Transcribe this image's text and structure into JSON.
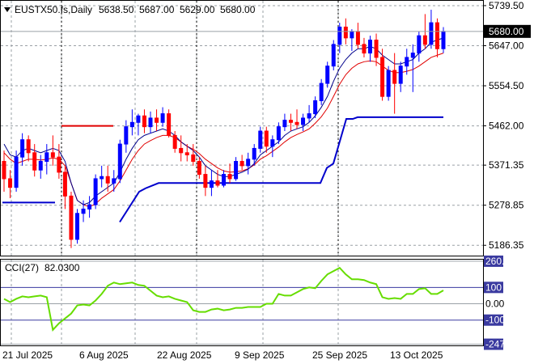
{
  "header": {
    "symbol": "EUSTX50.fs,Daily",
    "open": "5638.50",
    "high": "5687.00",
    "low": "5629.00",
    "close": "5680.00"
  },
  "indicator": {
    "label": "CCI(27)",
    "value": "82.0300"
  },
  "chart_data": {
    "type": "candlestick",
    "price_ticks": [
      "5739.50",
      "5647.00",
      "5554.50",
      "5462.00",
      "5371.35",
      "5278.85",
      "5186.35"
    ],
    "current_price": "5680.00",
    "x_ticks": [
      "21 Jul 2025",
      "6 Aug 2025",
      "22 Aug 2025",
      "9 Sep 2025",
      "25 Sep 2025",
      "13 Oct 2025"
    ],
    "cci_ticks": [
      "260.4851",
      "100",
      "0.00",
      "-100",
      "-247.8169"
    ],
    "ohlc": [
      [
        5380,
        5405,
        5310,
        5340
      ],
      [
        5340,
        5360,
        5295,
        5320
      ],
      [
        5320,
        5405,
        5310,
        5390
      ],
      [
        5390,
        5445,
        5370,
        5430
      ],
      [
        5430,
        5440,
        5380,
        5400
      ],
      [
        5400,
        5420,
        5345,
        5360
      ],
      [
        5360,
        5395,
        5340,
        5380
      ],
      [
        5380,
        5420,
        5350,
        5400
      ],
      [
        5400,
        5440,
        5370,
        5390
      ],
      [
        5390,
        5420,
        5340,
        5355
      ],
      [
        5355,
        5370,
        5270,
        5300
      ],
      [
        5300,
        5310,
        5180,
        5200
      ],
      [
        5200,
        5270,
        5190,
        5260
      ],
      [
        5260,
        5290,
        5240,
        5270
      ],
      [
        5270,
        5300,
        5250,
        5280
      ],
      [
        5280,
        5350,
        5270,
        5340
      ],
      [
        5340,
        5370,
        5320,
        5345
      ],
      [
        5345,
        5370,
        5310,
        5330
      ],
      [
        5330,
        5360,
        5310,
        5340
      ],
      [
        5340,
        5430,
        5330,
        5420
      ],
      [
        5420,
        5475,
        5400,
        5460
      ],
      [
        5460,
        5500,
        5440,
        5470
      ],
      [
        5470,
        5490,
        5440,
        5485
      ],
      [
        5485,
        5500,
        5445,
        5460
      ],
      [
        5460,
        5495,
        5445,
        5480
      ],
      [
        5480,
        5500,
        5450,
        5470
      ],
      [
        5470,
        5505,
        5460,
        5490
      ],
      [
        5490,
        5500,
        5435,
        5440
      ],
      [
        5440,
        5450,
        5400,
        5410
      ],
      [
        5410,
        5440,
        5380,
        5400
      ],
      [
        5400,
        5420,
        5380,
        5395
      ],
      [
        5395,
        5420,
        5370,
        5380
      ],
      [
        5380,
        5390,
        5340,
        5350
      ],
      [
        5350,
        5370,
        5300,
        5320
      ],
      [
        5320,
        5360,
        5300,
        5335
      ],
      [
        5335,
        5360,
        5320,
        5325
      ],
      [
        5325,
        5360,
        5320,
        5350
      ],
      [
        5350,
        5375,
        5330,
        5340
      ],
      [
        5340,
        5390,
        5335,
        5380
      ],
      [
        5380,
        5395,
        5360,
        5370
      ],
      [
        5370,
        5400,
        5350,
        5385
      ],
      [
        5385,
        5420,
        5370,
        5410
      ],
      [
        5410,
        5460,
        5400,
        5450
      ],
      [
        5450,
        5460,
        5400,
        5415
      ],
      [
        5415,
        5440,
        5390,
        5430
      ],
      [
        5430,
        5470,
        5420,
        5460
      ],
      [
        5460,
        5490,
        5450,
        5475
      ],
      [
        5475,
        5490,
        5450,
        5470
      ],
      [
        5470,
        5500,
        5455,
        5465
      ],
      [
        5465,
        5490,
        5450,
        5480
      ],
      [
        5480,
        5510,
        5470,
        5490
      ],
      [
        5490,
        5530,
        5480,
        5520
      ],
      [
        5520,
        5570,
        5510,
        5560
      ],
      [
        5560,
        5610,
        5550,
        5600
      ],
      [
        5600,
        5660,
        5590,
        5650
      ],
      [
        5650,
        5700,
        5630,
        5690
      ],
      [
        5690,
        5710,
        5650,
        5665
      ],
      [
        5665,
        5685,
        5635,
        5680
      ],
      [
        5680,
        5700,
        5640,
        5650
      ],
      [
        5650,
        5665,
        5620,
        5630
      ],
      [
        5630,
        5670,
        5610,
        5660
      ],
      [
        5660,
        5675,
        5600,
        5620
      ],
      [
        5620,
        5640,
        5520,
        5530
      ],
      [
        5530,
        5600,
        5520,
        5590
      ],
      [
        5590,
        5630,
        5490,
        5560
      ],
      [
        5560,
        5610,
        5540,
        5600
      ],
      [
        5600,
        5640,
        5580,
        5620
      ],
      [
        5620,
        5650,
        5540,
        5630
      ],
      [
        5630,
        5680,
        5610,
        5670
      ],
      [
        5670,
        5720,
        5640,
        5650
      ],
      [
        5650,
        5730,
        5640,
        5700
      ],
      [
        5700,
        5710,
        5620,
        5640
      ],
      [
        5640,
        5690,
        5630,
        5680
      ]
    ],
    "blue_ma": [
      5420,
      5395,
      5390,
      5405,
      5410,
      5405,
      5400,
      5405,
      5410,
      5405,
      5380,
      5330,
      5290,
      5280,
      5285,
      5300,
      5310,
      5320,
      5330,
      5355,
      5385,
      5410,
      5430,
      5440,
      5445,
      5450,
      5455,
      5450,
      5440,
      5425,
      5415,
      5405,
      5390,
      5370,
      5360,
      5350,
      5345,
      5345,
      5350,
      5355,
      5362,
      5375,
      5395,
      5405,
      5415,
      5425,
      5440,
      5450,
      5455,
      5460,
      5470,
      5485,
      5505,
      5530,
      5565,
      5595,
      5615,
      5630,
      5640,
      5640,
      5645,
      5640,
      5625,
      5615,
      5605,
      5605,
      5610,
      5615,
      5630,
      5640,
      5655,
      5660,
      5665
    ],
    "red_ma": [
      5400,
      5385,
      5375,
      5380,
      5385,
      5385,
      5383,
      5385,
      5388,
      5385,
      5370,
      5330,
      5290,
      5280,
      5275,
      5282,
      5295,
      5305,
      5315,
      5335,
      5360,
      5385,
      5405,
      5420,
      5428,
      5435,
      5440,
      5440,
      5435,
      5425,
      5415,
      5408,
      5398,
      5385,
      5375,
      5365,
      5358,
      5355,
      5356,
      5358,
      5363,
      5372,
      5385,
      5393,
      5403,
      5413,
      5425,
      5435,
      5442,
      5448,
      5455,
      5468,
      5483,
      5503,
      5530,
      5558,
      5580,
      5595,
      5605,
      5610,
      5612,
      5610,
      5600,
      5590,
      5585,
      5585,
      5588,
      5592,
      5600,
      5610,
      5620,
      5625,
      5630
    ],
    "support": [
      {
        "from": 0,
        "to": 9,
        "price": 5285,
        "color": "#0000cc"
      },
      {
        "from": 10,
        "to": 19,
        "price": 5462,
        "color": "#e00000"
      },
      {
        "from": 21,
        "to": 72,
        "price": "stepped",
        "color": "#0000cc"
      }
    ],
    "cci": [
      30,
      10,
      30,
      45,
      40,
      45,
      50,
      40,
      -160,
      -120,
      -90,
      -60,
      -10,
      -5,
      -10,
      20,
      60,
      110,
      130,
      120,
      125,
      130,
      115,
      110,
      80,
      50,
      40,
      45,
      30,
      20,
      10,
      -40,
      -50,
      -50,
      -35,
      -30,
      -40,
      -35,
      -25,
      -25,
      -20,
      -20,
      -20,
      0,
      0,
      60,
      50,
      50,
      70,
      90,
      100,
      95,
      140,
      180,
      200,
      220,
      180,
      150,
      150,
      145,
      130,
      120,
      40,
      30,
      35,
      30,
      60,
      60,
      90,
      95,
      60,
      60,
      82
    ]
  }
}
